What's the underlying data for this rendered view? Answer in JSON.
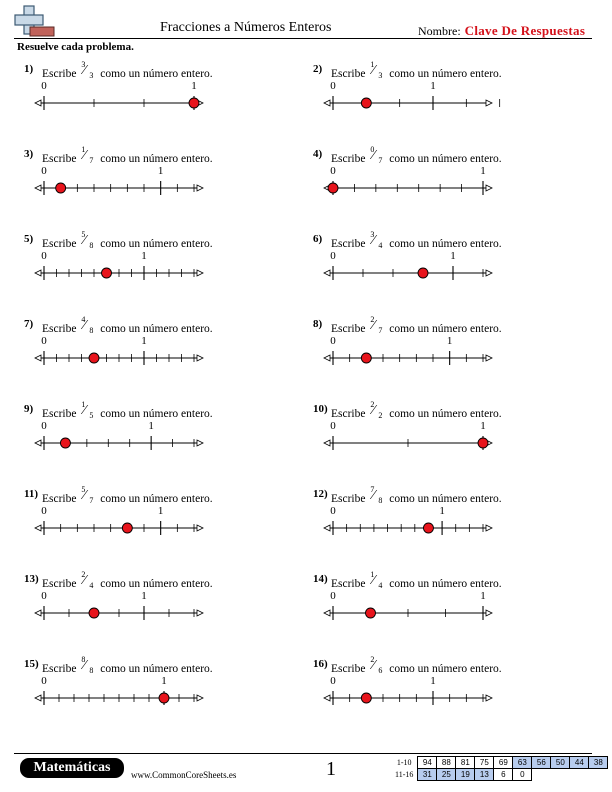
{
  "header": {
    "title": "Fracciones a Números Enteros",
    "name_label": "Nombre:",
    "name_value": "Clave De Respuestas",
    "instructions": "Resuelve cada problema."
  },
  "problems": [
    {
      "num": "1)",
      "numerator": "3",
      "denominator": "3",
      "max": 1,
      "answer": 1,
      "lbl0": "0",
      "lbl1": "1"
    },
    {
      "num": "2)",
      "numerator": "1",
      "denominator": "3",
      "max": 1.5,
      "answer": 0.3333,
      "lbl0": "0",
      "lbl1": "1"
    },
    {
      "num": "3)",
      "numerator": "1",
      "denominator": "7",
      "max": 1.2857,
      "answer": 0.1429,
      "lbl0": "0",
      "lbl1": "1"
    },
    {
      "num": "4)",
      "numerator": "0",
      "denominator": "7",
      "max": 1,
      "answer": 0,
      "lbl0": "0",
      "lbl1": "1"
    },
    {
      "num": "5)",
      "numerator": "5",
      "denominator": "8",
      "max": 1.5,
      "answer": 0.625,
      "lbl0": "0",
      "lbl1": "1"
    },
    {
      "num": "6)",
      "numerator": "3",
      "denominator": "4",
      "max": 1.25,
      "answer": 0.75,
      "lbl0": "0",
      "lbl1": "1"
    },
    {
      "num": "7)",
      "numerator": "4",
      "denominator": "8",
      "max": 1.5,
      "answer": 0.5,
      "lbl0": "0",
      "lbl1": "1"
    },
    {
      "num": "8)",
      "numerator": "2",
      "denominator": "7",
      "max": 1.2857,
      "answer": 0.2857,
      "lbl0": "0",
      "lbl1": "1"
    },
    {
      "num": "9)",
      "numerator": "1",
      "denominator": "5",
      "max": 1.4,
      "answer": 0.2,
      "lbl0": "0",
      "lbl1": "1"
    },
    {
      "num": "10)",
      "numerator": "2",
      "denominator": "2",
      "max": 1,
      "answer": 1,
      "lbl0": "0",
      "lbl1": "1"
    },
    {
      "num": "11)",
      "numerator": "5",
      "denominator": "7",
      "max": 1.2857,
      "answer": 0.7143,
      "lbl0": "0",
      "lbl1": "1"
    },
    {
      "num": "12)",
      "numerator": "7",
      "denominator": "8",
      "max": 1.375,
      "answer": 0.875,
      "lbl0": "0",
      "lbl1": "1"
    },
    {
      "num": "13)",
      "numerator": "2",
      "denominator": "4",
      "max": 1.5,
      "answer": 0.5,
      "lbl0": "0",
      "lbl1": "1"
    },
    {
      "num": "14)",
      "numerator": "1",
      "denominator": "4",
      "max": 1,
      "answer": 0.25,
      "lbl0": "0",
      "lbl1": "1"
    },
    {
      "num": "15)",
      "numerator": "8",
      "denominator": "8",
      "max": 1.25,
      "answer": 1,
      "lbl0": "0",
      "lbl1": "1"
    },
    {
      "num": "16)",
      "numerator": "2",
      "denominator": "6",
      "max": 1.5,
      "answer": 0.3333,
      "lbl0": "0",
      "lbl1": "1"
    }
  ],
  "prompt": {
    "before": "Escribe",
    "after": "como un número entero."
  },
  "footer": {
    "brand": "Matemáticas",
    "site": "www.CommonCoreSheets.es",
    "page": "1",
    "score_rows": [
      {
        "label": "1-10",
        "cells": [
          "94",
          "88",
          "81",
          "75",
          "69",
          "63",
          "56",
          "50",
          "44",
          "38"
        ]
      },
      {
        "label": "11-16",
        "cells": [
          "31",
          "25",
          "19",
          "13",
          "6",
          "0"
        ]
      }
    ]
  },
  "colors": {
    "answer_dot": "#e8141c",
    "answer_key": "#d4111a"
  }
}
